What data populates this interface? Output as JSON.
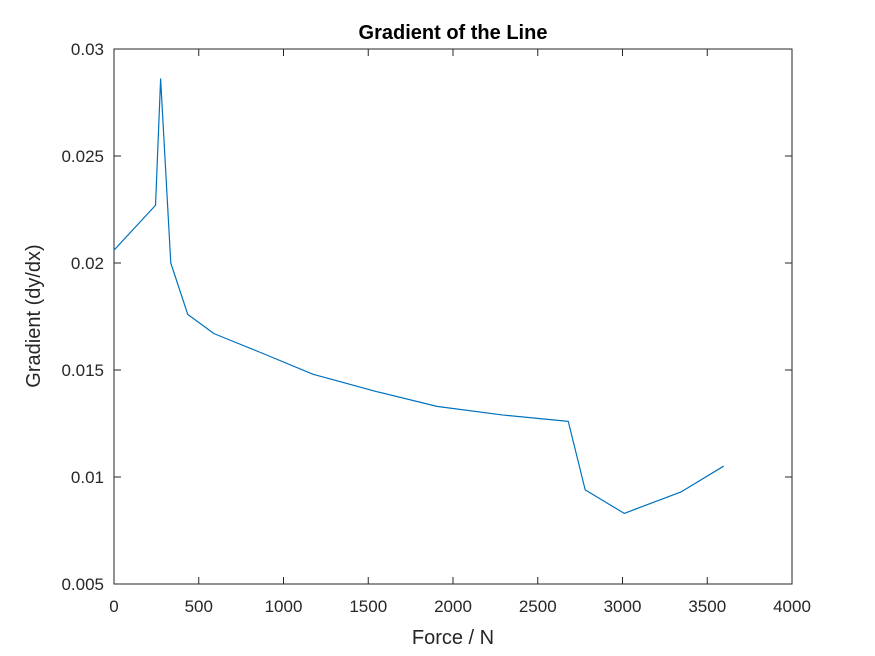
{
  "chart_data": {
    "type": "line",
    "title": "Gradient of the Line",
    "xlabel": "Force / N",
    "ylabel": "Gradient (dy/dx)",
    "xlim": [
      0,
      4000
    ],
    "ylim": [
      0.005,
      0.03
    ],
    "grid": false,
    "legend": "none",
    "x_ticks": [
      0,
      500,
      1000,
      1500,
      2000,
      2500,
      3000,
      3500,
      4000
    ],
    "x_tick_labels": [
      "0",
      "500",
      "1000",
      "1500",
      "2000",
      "2500",
      "3000",
      "3500",
      "4000"
    ],
    "y_ticks": [
      0.005,
      0.01,
      0.015,
      0.02,
      0.025,
      0.03
    ],
    "y_tick_labels": [
      "0.005",
      "0.01",
      "0.015",
      "0.02",
      "0.025",
      "0.03"
    ],
    "series": [
      {
        "color": "#0072BD",
        "x": [
          0,
          245,
          275,
          335,
          435,
          590,
          870,
          1175,
          1545,
          1905,
          2290,
          2680,
          2780,
          3010,
          3345,
          3595
        ],
        "y": [
          0.0206,
          0.0227,
          0.0286,
          0.02,
          0.0176,
          0.0167,
          0.0158,
          0.0148,
          0.014,
          0.0133,
          0.0129,
          0.0126,
          0.0094,
          0.0083,
          0.0093,
          0.0105
        ]
      }
    ]
  }
}
